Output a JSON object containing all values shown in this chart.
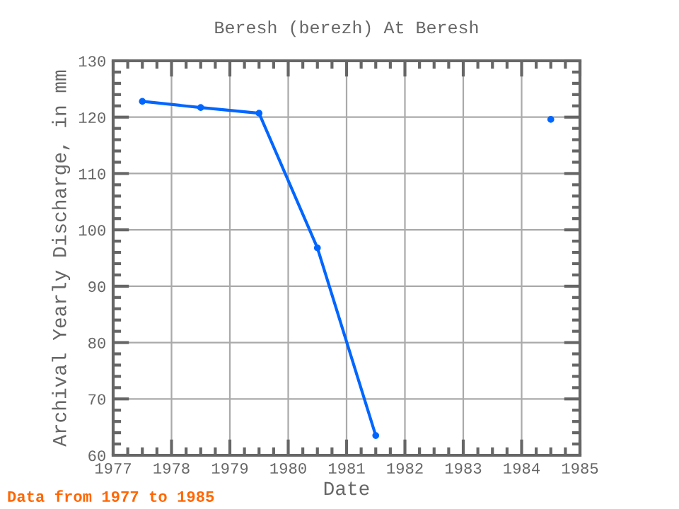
{
  "chart_data": {
    "type": "line",
    "title": "Beresh (berezh) At Beresh",
    "xlabel": "Date",
    "ylabel": "Archival Yearly Discharge, in mm",
    "x": [
      1977.5,
      1978.5,
      1979.5,
      1980.5,
      1981.5,
      1982.5,
      1983.5,
      1984.5
    ],
    "series": [
      {
        "color": "#0066ff",
        "values": [
          122.8,
          121.7,
          120.7,
          96.8,
          63.5,
          null,
          null,
          119.6
        ]
      }
    ],
    "xlim": [
      1977,
      1985
    ],
    "xticks": [
      1977,
      1978,
      1979,
      1980,
      1981,
      1982,
      1983,
      1984,
      1985
    ],
    "ylim": [
      60,
      130
    ],
    "yticks": [
      60,
      70,
      80,
      90,
      100,
      110,
      120,
      130
    ],
    "grid": true,
    "marker": "circle",
    "annotations": [
      "Data from 1977 to 1985"
    ]
  }
}
